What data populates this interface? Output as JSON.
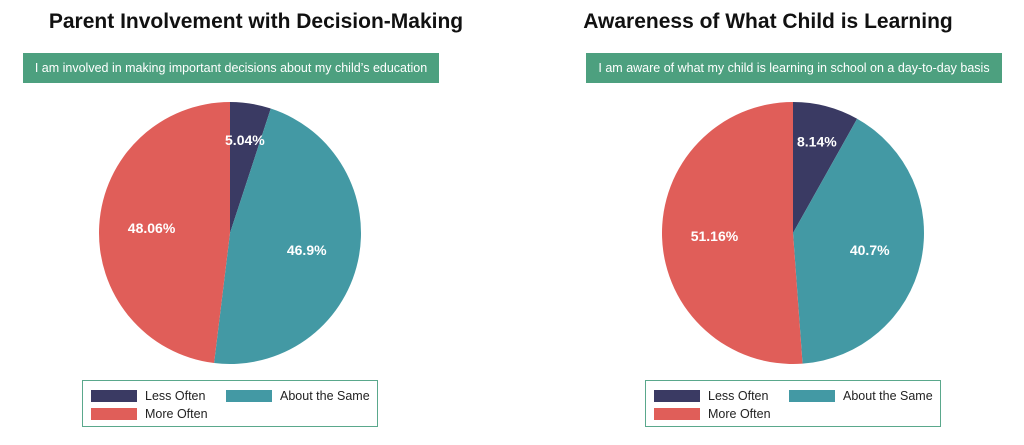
{
  "colors": {
    "less_often": "#3a3a63",
    "about_same": "#4399a4",
    "more_often": "#e05e59",
    "banner": "#4da07f"
  },
  "chart_data": [
    {
      "type": "pie",
      "title": "Parent Involvement with Decision-Making",
      "subtitle": "I am involved in making important decisions about my child’s education",
      "categories": [
        "Less Often",
        "About the Same",
        "More Often"
      ],
      "values": [
        5.04,
        46.9,
        48.06
      ],
      "labels": [
        "5.04%",
        "46.9%",
        "48.06%"
      ],
      "legend": [
        "Less Often",
        "About the Same",
        "More Often"
      ],
      "legend_position": "bottom"
    },
    {
      "type": "pie",
      "title": "Awareness of What Child is Learning",
      "subtitle": "I am aware of what my child is learning in school on a day-to-day basis",
      "categories": [
        "Less Often",
        "About the Same",
        "More Often"
      ],
      "values": [
        8.14,
        40.7,
        51.16
      ],
      "labels": [
        "8.14%",
        "40.7%",
        "51.16%"
      ],
      "legend": [
        "Less Often",
        "About the Same",
        "More Often"
      ],
      "legend_position": "bottom"
    }
  ]
}
